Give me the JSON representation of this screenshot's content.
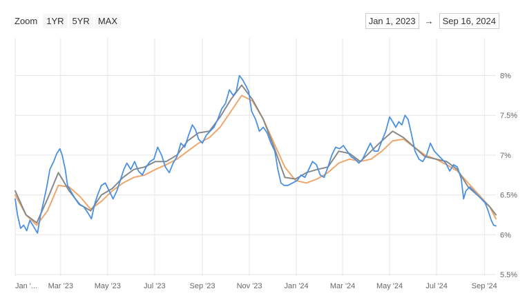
{
  "toolbar": {
    "zoom_label": "Zoom",
    "buttons": [
      "1YR",
      "5YR",
      "MAX"
    ]
  },
  "range": {
    "from": "Jan 1, 2023",
    "arrow": "→",
    "to": "Sep 16, 2024"
  },
  "colors": {
    "daily": "#4a90e2",
    "weekly_avg": "#888888",
    "monthly_avg": "#f0a66a",
    "grid": "#e6e6e6"
  },
  "chart_data": {
    "type": "line",
    "xlim": [
      "2023-01-01",
      "2024-09-16"
    ],
    "ylim": [
      5.5,
      8.1
    ],
    "y_ticks": [
      {
        "value": 5.5,
        "label": "5.5%"
      },
      {
        "value": 6.0,
        "label": "6%"
      },
      {
        "value": 6.5,
        "label": "6.5%"
      },
      {
        "value": 7.0,
        "label": "7%"
      },
      {
        "value": 7.5,
        "label": "7.5%"
      },
      {
        "value": 8.0,
        "label": "8%"
      }
    ],
    "x_ticks": [
      {
        "date": "2023-01-01",
        "label": "Jan '..."
      },
      {
        "date": "2023-03-01",
        "label": "Mar '23"
      },
      {
        "date": "2023-05-01",
        "label": "May '23"
      },
      {
        "date": "2023-07-01",
        "label": "Jul '23"
      },
      {
        "date": "2023-09-01",
        "label": "Sep '23"
      },
      {
        "date": "2023-11-01",
        "label": "Nov '23"
      },
      {
        "date": "2024-01-01",
        "label": "Jan '24"
      },
      {
        "date": "2024-03-01",
        "label": "Mar '24"
      },
      {
        "date": "2024-05-01",
        "label": "May '24"
      },
      {
        "date": "2024-07-01",
        "label": "Jul '24"
      },
      {
        "date": "2024-09-01",
        "label": "Sep '24"
      }
    ],
    "grid": true,
    "legend": "none",
    "series": [
      {
        "color_key": "daily",
        "points": [
          [
            "2023-01-01",
            6.45
          ],
          [
            "2023-01-04",
            6.25
          ],
          [
            "2023-01-08",
            6.08
          ],
          [
            "2023-01-12",
            6.12
          ],
          [
            "2023-01-16",
            6.05
          ],
          [
            "2023-01-20",
            6.18
          ],
          [
            "2023-01-25",
            6.1
          ],
          [
            "2023-01-30",
            6.02
          ],
          [
            "2023-02-03",
            6.25
          ],
          [
            "2023-02-07",
            6.42
          ],
          [
            "2023-02-11",
            6.6
          ],
          [
            "2023-02-15",
            6.82
          ],
          [
            "2023-02-20",
            6.92
          ],
          [
            "2023-02-24",
            7.02
          ],
          [
            "2023-02-28",
            7.08
          ],
          [
            "2023-03-03",
            7.0
          ],
          [
            "2023-03-07",
            6.82
          ],
          [
            "2023-03-10",
            6.62
          ],
          [
            "2023-03-14",
            6.55
          ],
          [
            "2023-03-20",
            6.45
          ],
          [
            "2023-03-25",
            6.38
          ],
          [
            "2023-03-31",
            6.35
          ],
          [
            "2023-04-05",
            6.28
          ],
          [
            "2023-04-10",
            6.2
          ],
          [
            "2023-04-14",
            6.38
          ],
          [
            "2023-04-18",
            6.5
          ],
          [
            "2023-04-23",
            6.62
          ],
          [
            "2023-04-28",
            6.65
          ],
          [
            "2023-05-03",
            6.55
          ],
          [
            "2023-05-08",
            6.45
          ],
          [
            "2023-05-13",
            6.55
          ],
          [
            "2023-05-18",
            6.7
          ],
          [
            "2023-05-22",
            6.82
          ],
          [
            "2023-05-26",
            6.9
          ],
          [
            "2023-05-31",
            6.82
          ],
          [
            "2023-06-05",
            6.92
          ],
          [
            "2023-06-10",
            6.8
          ],
          [
            "2023-06-15",
            6.75
          ],
          [
            "2023-06-20",
            6.85
          ],
          [
            "2023-06-25",
            6.92
          ],
          [
            "2023-06-30",
            6.95
          ],
          [
            "2023-07-05",
            7.1
          ],
          [
            "2023-07-10",
            7.0
          ],
          [
            "2023-07-15",
            6.85
          ],
          [
            "2023-07-20",
            6.78
          ],
          [
            "2023-07-25",
            6.9
          ],
          [
            "2023-07-30",
            6.98
          ],
          [
            "2023-08-04",
            7.15
          ],
          [
            "2023-08-09",
            7.1
          ],
          [
            "2023-08-14",
            7.25
          ],
          [
            "2023-08-19",
            7.38
          ],
          [
            "2023-08-23",
            7.32
          ],
          [
            "2023-08-27",
            7.2
          ],
          [
            "2023-09-01",
            7.15
          ],
          [
            "2023-09-06",
            7.25
          ],
          [
            "2023-09-11",
            7.3
          ],
          [
            "2023-09-16",
            7.35
          ],
          [
            "2023-09-21",
            7.45
          ],
          [
            "2023-09-26",
            7.58
          ],
          [
            "2023-10-01",
            7.65
          ],
          [
            "2023-10-06",
            7.82
          ],
          [
            "2023-10-11",
            7.75
          ],
          [
            "2023-10-15",
            7.8
          ],
          [
            "2023-10-19",
            8.0
          ],
          [
            "2023-10-23",
            7.95
          ],
          [
            "2023-10-27",
            7.88
          ],
          [
            "2023-10-31",
            7.8
          ],
          [
            "2023-11-04",
            7.55
          ],
          [
            "2023-11-09",
            7.45
          ],
          [
            "2023-11-14",
            7.3
          ],
          [
            "2023-11-19",
            7.35
          ],
          [
            "2023-11-24",
            7.28
          ],
          [
            "2023-11-29",
            7.15
          ],
          [
            "2023-12-04",
            7.05
          ],
          [
            "2023-12-08",
            6.82
          ],
          [
            "2023-12-12",
            6.65
          ],
          [
            "2023-12-16",
            6.62
          ],
          [
            "2023-12-21",
            6.62
          ],
          [
            "2023-12-27",
            6.65
          ],
          [
            "2024-01-02",
            6.68
          ],
          [
            "2024-01-07",
            6.75
          ],
          [
            "2024-01-12",
            6.72
          ],
          [
            "2024-01-17",
            6.82
          ],
          [
            "2024-01-22",
            6.92
          ],
          [
            "2024-01-27",
            6.88
          ],
          [
            "2024-02-01",
            6.75
          ],
          [
            "2024-02-06",
            6.72
          ],
          [
            "2024-02-11",
            6.85
          ],
          [
            "2024-02-16",
            7.0
          ],
          [
            "2024-02-21",
            7.1
          ],
          [
            "2024-02-26",
            7.08
          ],
          [
            "2024-03-02",
            7.12
          ],
          [
            "2024-03-07",
            7.05
          ],
          [
            "2024-03-12",
            6.98
          ],
          [
            "2024-03-17",
            6.95
          ],
          [
            "2024-03-22",
            6.9
          ],
          [
            "2024-03-27",
            6.95
          ],
          [
            "2024-04-01",
            7.05
          ],
          [
            "2024-04-06",
            7.15
          ],
          [
            "2024-04-11",
            7.05
          ],
          [
            "2024-04-16",
            7.05
          ],
          [
            "2024-04-21",
            7.18
          ],
          [
            "2024-04-26",
            7.3
          ],
          [
            "2024-05-01",
            7.48
          ],
          [
            "2024-05-05",
            7.42
          ],
          [
            "2024-05-09",
            7.35
          ],
          [
            "2024-05-13",
            7.42
          ],
          [
            "2024-05-17",
            7.38
          ],
          [
            "2024-05-21",
            7.5
          ],
          [
            "2024-05-25",
            7.45
          ],
          [
            "2024-05-29",
            7.28
          ],
          [
            "2024-06-03",
            7.05
          ],
          [
            "2024-06-08",
            6.95
          ],
          [
            "2024-06-13",
            6.92
          ],
          [
            "2024-06-18",
            7.0
          ],
          [
            "2024-06-23",
            7.15
          ],
          [
            "2024-06-28",
            7.05
          ],
          [
            "2024-07-03",
            7.0
          ],
          [
            "2024-07-08",
            6.95
          ],
          [
            "2024-07-13",
            6.9
          ],
          [
            "2024-07-18",
            6.8
          ],
          [
            "2024-07-23",
            6.88
          ],
          [
            "2024-07-28",
            6.85
          ],
          [
            "2024-08-02",
            6.7
          ],
          [
            "2024-08-05",
            6.45
          ],
          [
            "2024-08-08",
            6.55
          ],
          [
            "2024-08-13",
            6.6
          ],
          [
            "2024-08-18",
            6.55
          ],
          [
            "2024-08-23",
            6.5
          ],
          [
            "2024-08-28",
            6.45
          ],
          [
            "2024-09-02",
            6.4
          ],
          [
            "2024-09-06",
            6.3
          ],
          [
            "2024-09-10",
            6.18
          ],
          [
            "2024-09-13",
            6.12
          ],
          [
            "2024-09-16",
            6.11
          ]
        ]
      },
      {
        "color_key": "weekly_avg",
        "points": [
          [
            "2023-01-01",
            6.55
          ],
          [
            "2023-01-15",
            6.25
          ],
          [
            "2023-01-29",
            6.15
          ],
          [
            "2023-02-12",
            6.45
          ],
          [
            "2023-02-26",
            6.78
          ],
          [
            "2023-03-12",
            6.55
          ],
          [
            "2023-03-26",
            6.38
          ],
          [
            "2023-04-09",
            6.3
          ],
          [
            "2023-04-23",
            6.5
          ],
          [
            "2023-05-07",
            6.58
          ],
          [
            "2023-05-21",
            6.72
          ],
          [
            "2023-06-04",
            6.82
          ],
          [
            "2023-06-18",
            6.85
          ],
          [
            "2023-07-02",
            6.92
          ],
          [
            "2023-07-16",
            6.92
          ],
          [
            "2023-07-30",
            7.0
          ],
          [
            "2023-08-13",
            7.18
          ],
          [
            "2023-08-27",
            7.28
          ],
          [
            "2023-09-10",
            7.3
          ],
          [
            "2023-09-24",
            7.48
          ],
          [
            "2023-10-08",
            7.7
          ],
          [
            "2023-10-22",
            7.88
          ],
          [
            "2023-11-05",
            7.7
          ],
          [
            "2023-11-19",
            7.45
          ],
          [
            "2023-12-03",
            7.1
          ],
          [
            "2023-12-17",
            6.72
          ],
          [
            "2023-12-31",
            6.7
          ],
          [
            "2024-01-14",
            6.78
          ],
          [
            "2024-01-28",
            6.82
          ],
          [
            "2024-02-11",
            6.85
          ],
          [
            "2024-02-25",
            7.05
          ],
          [
            "2024-03-10",
            7.02
          ],
          [
            "2024-03-24",
            6.92
          ],
          [
            "2024-04-07",
            7.05
          ],
          [
            "2024-04-21",
            7.18
          ],
          [
            "2024-05-05",
            7.3
          ],
          [
            "2024-05-19",
            7.22
          ],
          [
            "2024-06-02",
            7.1
          ],
          [
            "2024-06-16",
            6.98
          ],
          [
            "2024-06-30",
            6.95
          ],
          [
            "2024-07-14",
            6.92
          ],
          [
            "2024-07-28",
            6.82
          ],
          [
            "2024-08-11",
            6.6
          ],
          [
            "2024-08-25",
            6.48
          ],
          [
            "2024-09-08",
            6.35
          ],
          [
            "2024-09-16",
            6.25
          ]
        ]
      },
      {
        "color_key": "monthly_avg",
        "points": [
          [
            "2023-01-01",
            6.5
          ],
          [
            "2023-01-15",
            6.25
          ],
          [
            "2023-01-29",
            6.12
          ],
          [
            "2023-02-12",
            6.3
          ],
          [
            "2023-02-26",
            6.62
          ],
          [
            "2023-03-12",
            6.6
          ],
          [
            "2023-03-26",
            6.48
          ],
          [
            "2023-04-09",
            6.32
          ],
          [
            "2023-04-23",
            6.42
          ],
          [
            "2023-05-07",
            6.55
          ],
          [
            "2023-05-21",
            6.65
          ],
          [
            "2023-06-04",
            6.72
          ],
          [
            "2023-06-18",
            6.75
          ],
          [
            "2023-07-02",
            6.82
          ],
          [
            "2023-07-16",
            6.88
          ],
          [
            "2023-07-30",
            6.95
          ],
          [
            "2023-08-13",
            7.05
          ],
          [
            "2023-08-27",
            7.15
          ],
          [
            "2023-09-10",
            7.22
          ],
          [
            "2023-09-24",
            7.35
          ],
          [
            "2023-10-08",
            7.55
          ],
          [
            "2023-10-22",
            7.75
          ],
          [
            "2023-11-05",
            7.68
          ],
          [
            "2023-11-19",
            7.45
          ],
          [
            "2023-12-03",
            7.15
          ],
          [
            "2023-12-17",
            6.85
          ],
          [
            "2023-12-31",
            6.68
          ],
          [
            "2024-01-14",
            6.65
          ],
          [
            "2024-01-28",
            6.7
          ],
          [
            "2024-02-11",
            6.78
          ],
          [
            "2024-02-25",
            6.9
          ],
          [
            "2024-03-10",
            6.95
          ],
          [
            "2024-03-24",
            6.92
          ],
          [
            "2024-04-07",
            6.95
          ],
          [
            "2024-04-21",
            7.05
          ],
          [
            "2024-05-05",
            7.18
          ],
          [
            "2024-05-19",
            7.2
          ],
          [
            "2024-06-02",
            7.1
          ],
          [
            "2024-06-16",
            7.0
          ],
          [
            "2024-06-30",
            6.95
          ],
          [
            "2024-07-14",
            6.88
          ],
          [
            "2024-07-28",
            6.8
          ],
          [
            "2024-08-11",
            6.65
          ],
          [
            "2024-08-25",
            6.5
          ],
          [
            "2024-09-08",
            6.35
          ],
          [
            "2024-09-16",
            6.2
          ]
        ]
      }
    ]
  }
}
